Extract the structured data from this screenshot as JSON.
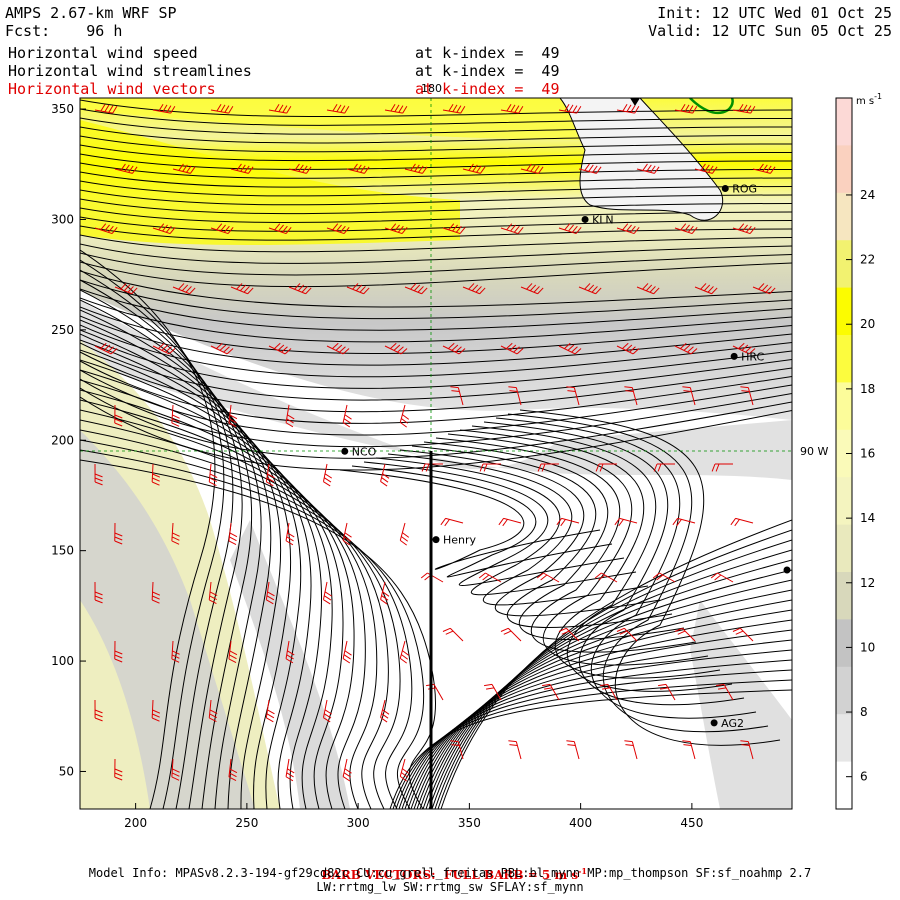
{
  "header": {
    "model_title": "AMPS 2.67-km WRF SP",
    "forecast": "Fcst:    96 h",
    "init": "Init: 12 UTC Wed 01 Oct 25",
    "valid": "Valid: 12 UTC Sun 05 Oct 25",
    "field1": "Horizontal wind speed",
    "field2": "Horizontal wind streamlines",
    "field3": "Horizontal wind vectors",
    "level1": "at k-index =  49",
    "level2": "at k-index =  49",
    "level3": "at k-index =  49"
  },
  "footer": {
    "barb_note": "BARB VECTORS:  FULL BARB = 5 m s",
    "barb_unit_exp": "-1",
    "model_info_1": "Model Info: MPASv8.2.3-194-gf29cd82c CU:cu_grell_freitas PBL:bl_mynn MP:mp_thompson SF:sf_noahmp 2.7",
    "model_info_2": "LW:rrtmg_lw SW:rrtmg_sw SFLAY:sf_mynn"
  },
  "map_labels": {
    "lon_180": "180",
    "lon_90w": "90 W",
    "stations": [
      {
        "name": "NCO",
        "x": 294,
        "y": 195
      },
      {
        "name": "KLN",
        "x": 402,
        "y": 300
      },
      {
        "name": "ROG",
        "x": 465,
        "y": 314
      },
      {
        "name": "HRC",
        "x": 469,
        "y": 238
      },
      {
        "name": "Henry",
        "x": 335,
        "y": 155
      },
      {
        "name": "AG2",
        "x": 460,
        "y": 72
      }
    ]
  },
  "colorbar": {
    "unit": "m s",
    "unit_exp": "-1",
    "levels": [
      6,
      8,
      10,
      12,
      14,
      16,
      18,
      20,
      22,
      24
    ],
    "colors": [
      "#ffffff",
      "#e6e6e6",
      "#d2d2d2",
      "#c3c3c3",
      "#d8d8bb",
      "#e9e9bd",
      "#f4f4bf",
      "#fafab9",
      "#fcfc9a",
      "#fcfc3e",
      "#fcfc00",
      "#f2f270",
      "#f6e6c0",
      "#fad1bf",
      "#fcd9d6"
    ]
  },
  "chart_data": {
    "type": "heatmap",
    "title": "Horizontal wind speed / streamlines / vectors at k-index = 49",
    "xlabel": "",
    "ylabel": "",
    "xlim": [
      175,
      495
    ],
    "ylim": [
      33,
      355
    ],
    "xticks": [
      200,
      250,
      300,
      350,
      400,
      450
    ],
    "yticks": [
      50,
      100,
      150,
      200,
      250,
      300,
      350
    ],
    "colorbar_unit": "m s-1",
    "colorbar_range": [
      5,
      27
    ]
  }
}
